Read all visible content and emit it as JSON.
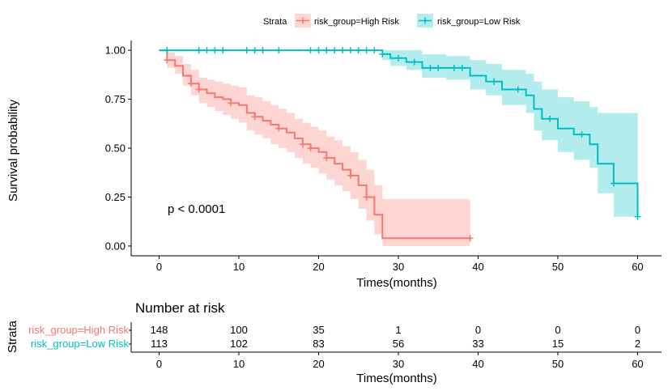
{
  "legend": {
    "title": "Strata",
    "entries": [
      {
        "label": "risk_group=High Risk",
        "color": "#F8766D"
      },
      {
        "label": "risk_group=Low Risk",
        "color": "#00BFC4"
      }
    ]
  },
  "colors": {
    "high": "#F8766D",
    "low": "#00BFC4",
    "ci_high": "#F8766D",
    "ci_low": "#00BFC4",
    "axis": "#000000"
  },
  "chart_data": [
    {
      "type": "line",
      "subtype": "kaplan-meier-step",
      "title": "",
      "xlabel": "Times(months)",
      "ylabel": "Survival probability",
      "xlim": [
        -3.5,
        63
      ],
      "ylim": [
        -0.05,
        1.05
      ],
      "x_ticks": [
        0,
        10,
        20,
        30,
        40,
        50,
        60
      ],
      "x_tick_labels": [
        "0",
        "10",
        "20",
        "30",
        "40",
        "50",
        "60"
      ],
      "y_ticks": [
        0,
        0.25,
        0.5,
        0.75,
        1
      ],
      "y_tick_labels": [
        "0.00",
        "0.25",
        "0.50",
        "0.75",
        "1.00"
      ],
      "grid": false,
      "legend_placement": "top",
      "annotation": "p < 0.0001",
      "series": [
        {
          "name": "risk_group=High Risk",
          "color": "#F8766D",
          "steps": [
            [
              0,
              1.0
            ],
            [
              1,
              0.95
            ],
            [
              2,
              0.92
            ],
            [
              3,
              0.87
            ],
            [
              4,
              0.83
            ],
            [
              5,
              0.8
            ],
            [
              6,
              0.78
            ],
            [
              7,
              0.76
            ],
            [
              8,
              0.75
            ],
            [
              9,
              0.73
            ],
            [
              10,
              0.72
            ],
            [
              11,
              0.68
            ],
            [
              12,
              0.66
            ],
            [
              13,
              0.64
            ],
            [
              14,
              0.62
            ],
            [
              15,
              0.6
            ],
            [
              16,
              0.58
            ],
            [
              17,
              0.55
            ],
            [
              18,
              0.52
            ],
            [
              19,
              0.5
            ],
            [
              20,
              0.48
            ],
            [
              21,
              0.45
            ],
            [
              22,
              0.42
            ],
            [
              23,
              0.39
            ],
            [
              24,
              0.36
            ],
            [
              25,
              0.31
            ],
            [
              26,
              0.25
            ],
            [
              27,
              0.16
            ],
            [
              28,
              0.04
            ],
            [
              39,
              0.04
            ]
          ],
          "ci_steps": [
            [
              0,
              1.0,
              1.0
            ],
            [
              1,
              0.91,
              0.99
            ],
            [
              2,
              0.88,
              0.97
            ],
            [
              3,
              0.82,
              0.93
            ],
            [
              4,
              0.77,
              0.9
            ],
            [
              5,
              0.73,
              0.86
            ],
            [
              6,
              0.71,
              0.85
            ],
            [
              7,
              0.69,
              0.84
            ],
            [
              8,
              0.67,
              0.83
            ],
            [
              9,
              0.65,
              0.82
            ],
            [
              10,
              0.63,
              0.81
            ],
            [
              11,
              0.59,
              0.77
            ],
            [
              12,
              0.57,
              0.76
            ],
            [
              13,
              0.55,
              0.74
            ],
            [
              14,
              0.52,
              0.72
            ],
            [
              15,
              0.5,
              0.7
            ],
            [
              16,
              0.48,
              0.68
            ],
            [
              17,
              0.45,
              0.65
            ],
            [
              18,
              0.42,
              0.63
            ],
            [
              19,
              0.4,
              0.61
            ],
            [
              20,
              0.37,
              0.59
            ],
            [
              21,
              0.34,
              0.56
            ],
            [
              22,
              0.31,
              0.54
            ],
            [
              23,
              0.28,
              0.51
            ],
            [
              24,
              0.24,
              0.48
            ],
            [
              25,
              0.19,
              0.44
            ],
            [
              26,
              0.13,
              0.39
            ],
            [
              27,
              0.06,
              0.31
            ],
            [
              28,
              0.0,
              0.24
            ],
            [
              39,
              0.0,
              0.24
            ]
          ],
          "censored": [
            [
              1,
              0.95
            ],
            [
              4,
              0.83
            ],
            [
              5,
              0.8
            ],
            [
              9,
              0.73
            ],
            [
              12,
              0.66
            ],
            [
              15,
              0.6
            ],
            [
              18,
              0.52
            ],
            [
              19,
              0.5
            ],
            [
              21,
              0.45
            ],
            [
              24,
              0.36
            ],
            [
              26,
              0.25
            ],
            [
              39,
              0.04
            ]
          ]
        },
        {
          "name": "risk_group=Low Risk",
          "color": "#00BFC4",
          "steps": [
            [
              0,
              1.0
            ],
            [
              28,
              0.98
            ],
            [
              29,
              0.96
            ],
            [
              31,
              0.94
            ],
            [
              33,
              0.91
            ],
            [
              36,
              0.91
            ],
            [
              39,
              0.87
            ],
            [
              41,
              0.84
            ],
            [
              43,
              0.8
            ],
            [
              46,
              0.77
            ],
            [
              47,
              0.7
            ],
            [
              48,
              0.65
            ],
            [
              50,
              0.6
            ],
            [
              52,
              0.57
            ],
            [
              54,
              0.52
            ],
            [
              55,
              0.42
            ],
            [
              57,
              0.32
            ],
            [
              60,
              0.15
            ]
          ],
          "ci_steps": [
            [
              0,
              1.0,
              1.0
            ],
            [
              28,
              0.95,
              1.0
            ],
            [
              29,
              0.92,
              1.0
            ],
            [
              31,
              0.9,
              1.0
            ],
            [
              33,
              0.86,
              0.98
            ],
            [
              36,
              0.85,
              0.97
            ],
            [
              39,
              0.8,
              0.95
            ],
            [
              41,
              0.77,
              0.93
            ],
            [
              43,
              0.72,
              0.9
            ],
            [
              46,
              0.68,
              0.88
            ],
            [
              47,
              0.59,
              0.84
            ],
            [
              48,
              0.54,
              0.8
            ],
            [
              50,
              0.48,
              0.76
            ],
            [
              52,
              0.44,
              0.74
            ],
            [
              54,
              0.4,
              0.71
            ],
            [
              55,
              0.27,
              0.68
            ],
            [
              57,
              0.15,
              0.68
            ],
            [
              60,
              0.15,
              0.68
            ]
          ],
          "censored": [
            [
              1,
              1.0
            ],
            [
              5,
              1.0
            ],
            [
              6,
              1.0
            ],
            [
              7,
              1.0
            ],
            [
              8,
              1.0
            ],
            [
              11,
              1.0
            ],
            [
              12,
              1.0
            ],
            [
              13,
              1.0
            ],
            [
              15,
              1.0
            ],
            [
              19,
              1.0
            ],
            [
              20,
              1.0
            ],
            [
              21,
              1.0
            ],
            [
              22,
              1.0
            ],
            [
              23,
              1.0
            ],
            [
              24,
              1.0
            ],
            [
              25,
              1.0
            ],
            [
              26,
              1.0
            ],
            [
              27,
              1.0
            ],
            [
              28,
              0.98
            ],
            [
              30,
              0.96
            ],
            [
              32,
              0.94
            ],
            [
              34,
              0.91
            ],
            [
              35,
              0.91
            ],
            [
              37,
              0.91
            ],
            [
              38,
              0.91
            ],
            [
              42,
              0.84
            ],
            [
              45,
              0.8
            ],
            [
              49,
              0.65
            ],
            [
              53,
              0.57
            ],
            [
              57,
              0.32
            ],
            [
              60,
              0.15
            ]
          ]
        }
      ]
    },
    {
      "type": "table",
      "title": "Number at risk",
      "xlabel": "Times(months)",
      "ylabel": "Strata",
      "x_ticks": [
        0,
        10,
        20,
        30,
        40,
        50,
        60
      ],
      "x_tick_labels": [
        "0",
        "10",
        "20",
        "30",
        "40",
        "50",
        "60"
      ],
      "rows": [
        {
          "name": "risk_group=High Risk",
          "color": "#F8766D",
          "values": [
            148,
            100,
            35,
            1,
            0,
            0,
            0
          ]
        },
        {
          "name": "risk_group=Low Risk",
          "color": "#00BFC4",
          "values": [
            113,
            102,
            83,
            56,
            33,
            15,
            2
          ]
        }
      ]
    }
  ]
}
